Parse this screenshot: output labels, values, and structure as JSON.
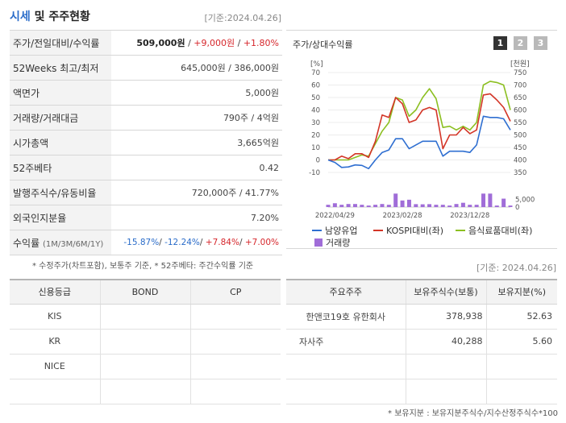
{
  "header": {
    "title_accent": "시세",
    "title_rest": "및 주주현황",
    "asof": "[기준:2024.04.26]"
  },
  "info_rows": [
    {
      "label": "주가/전일대비/수익률",
      "value": ""
    },
    {
      "label": "52Weeks 최고/최저",
      "value": "645,000원 / 386,000원"
    },
    {
      "label": "액면가",
      "value": "5,000원"
    },
    {
      "label": "거래량/거래대금",
      "value": "790주 / 4억원"
    },
    {
      "label": "시가총액",
      "value": "3,665억원"
    },
    {
      "label": "52주베타",
      "value": "0.42"
    },
    {
      "label": "발행주식수/유동비율",
      "value": "720,000주 / 41.77%"
    },
    {
      "label": "외국인지분율",
      "value": "7.20%"
    },
    {
      "label": "수익률",
      "value": ""
    }
  ],
  "price_row": {
    "price": "509,000원",
    "sep1": " / ",
    "change": "+9,000원",
    "sep2": " / ",
    "rate": "+1.80%"
  },
  "returns_row": {
    "label_sub": "(1M/3M/6M/1Y)",
    "r1": "-15.87%",
    "r3": "-12.24%",
    "r6": "+7.84%",
    "r12": "+7.00%",
    "sep": "/ "
  },
  "left_note": "* 수정주가(차트포함), 보통주 기준, * 52주베타: 주간수익률 기준",
  "chart": {
    "title": "주가/상대수익률",
    "period_buttons": [
      "1",
      "2",
      "3"
    ],
    "left_unit": "[%]",
    "right_unit": "[천원]",
    "legend": {
      "line1": "남양유업",
      "line2": "KOSPI대비(좌)",
      "line3": "음식료품대비(좌)",
      "bars": "거래량"
    },
    "colors": {
      "stock": "#2f6fd1",
      "kospi": "#d33527",
      "food": "#8cbf21",
      "volume": "#a06dd8"
    }
  },
  "chart_data": {
    "type": "line",
    "x_labels": [
      "2022/04/29",
      "2023/02/28",
      "2023/12/28"
    ],
    "y_left_ticks": [
      -10,
      0,
      10,
      20,
      30,
      40,
      50,
      60,
      70
    ],
    "y_left_range": [
      -10,
      70
    ],
    "y_right_ticks": [
      350,
      400,
      450,
      500,
      550,
      600,
      650,
      700,
      750
    ],
    "y_right_range": [
      350,
      750
    ],
    "volume_ticks": [
      0,
      5000
    ],
    "volume_range": [
      0,
      10000
    ],
    "series": [
      {
        "name": "남양유업",
        "axis": "right",
        "values": [
          400,
          390,
          370,
          372,
          380,
          378,
          365,
          400,
          430,
          440,
          485,
          485,
          445,
          460,
          475,
          475,
          475,
          415,
          435,
          435,
          435,
          430,
          460,
          575,
          570,
          570,
          565,
          520
        ]
      },
      {
        "name": "KOSPI대비(좌)",
        "axis": "left",
        "values": [
          0,
          0,
          3,
          1,
          5,
          5,
          2,
          15,
          36,
          34,
          50,
          45,
          30,
          32,
          40,
          42,
          40,
          9,
          20,
          20,
          26,
          21,
          24,
          52,
          53,
          48,
          42,
          31
        ]
      },
      {
        "name": "음식료품대비(좌)",
        "axis": "left",
        "values": [
          0,
          0,
          0,
          0,
          2,
          4,
          3,
          13,
          23,
          30,
          50,
          48,
          35,
          40,
          50,
          57,
          49,
          26,
          27,
          24,
          27,
          24,
          30,
          60,
          63,
          62,
          60,
          40
        ]
      }
    ],
    "volume": [
      1500,
      2500,
      1500,
      2000,
      2000,
      1500,
      1000,
      1500,
      2000,
      1500,
      8800,
      4300,
      4800,
      1900,
      1800,
      1900,
      1500,
      1500,
      1000,
      2000,
      2800,
      1500,
      1500,
      8800,
      8800,
      1000,
      5500,
      1000
    ]
  },
  "chart_asof": "[기준: 2024.04.26]",
  "credit_table": {
    "headers": [
      "신용등급",
      "BOND",
      "CP"
    ],
    "rows": [
      [
        "KIS",
        "",
        ""
      ],
      [
        "KR",
        "",
        ""
      ],
      [
        "NICE",
        "",
        ""
      ],
      [
        "",
        "",
        ""
      ]
    ]
  },
  "holder_table": {
    "headers": [
      "주요주주",
      "보유주식수(보통)",
      "보유지분(%)"
    ],
    "rows": [
      [
        "한앤코19호 유한회사",
        "378,938",
        "52.63"
      ],
      [
        "자사주",
        "40,288",
        "5.60"
      ],
      [
        "",
        "",
        ""
      ],
      [
        "",
        "",
        ""
      ]
    ]
  },
  "holder_note": "* 보유지분 : 보유지분주식수/지수산정주식수*100"
}
